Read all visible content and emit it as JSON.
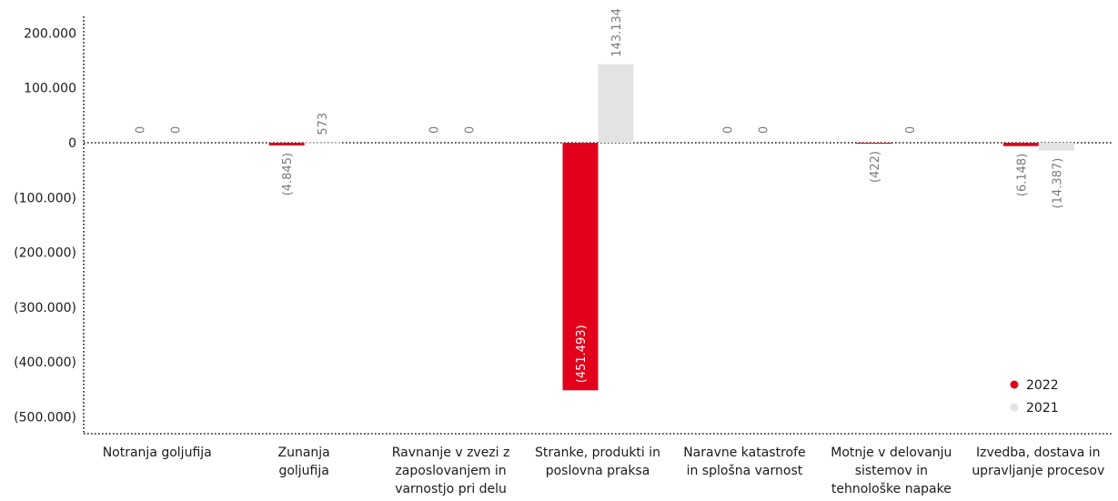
{
  "chart_data": {
    "type": "bar",
    "categories": [
      "Notranja goljufija",
      "Zunanja goljufija",
      "Ravnanje v zvezi z zaposlovanjem in varnostjo pri delu",
      "Stranke, produkti in poslovna praksa",
      "Naravne katastrofe in splošna varnost",
      "Motnje v delovanju sistemov in tehnološke napake",
      "Izvedba, dostava in upravljanje procesov"
    ],
    "category_lines": [
      [
        "Notranja goljufija"
      ],
      [
        "Zunanja",
        "goljufija"
      ],
      [
        "Ravnanje v zvezi z",
        "zaposlovanjem in",
        "varnostjo pri delu"
      ],
      [
        "Stranke, produkti in",
        "poslovna praksa"
      ],
      [
        "Naravne katastrofe",
        "in splošna varnost"
      ],
      [
        "Motnje v delovanju",
        "sistemov in",
        "tehnološke napake"
      ],
      [
        "Izvedba, dostava in",
        "upravljanje procesov"
      ]
    ],
    "series": [
      {
        "name": "2022",
        "color": "#e2001a",
        "values": [
          0,
          -4845,
          0,
          -451493,
          0,
          -422,
          -6148
        ],
        "labels": [
          "0",
          "(4.845)",
          "0",
          "(451.493)",
          "0",
          "(422)",
          "(6.148)"
        ]
      },
      {
        "name": "2021",
        "color": "#e3e3e3",
        "values": [
          0,
          573,
          0,
          143134,
          0,
          0,
          -14387
        ],
        "labels": [
          "0",
          "573",
          "0",
          "143.134",
          "0",
          "0",
          "(14.387)"
        ]
      }
    ],
    "y_ticks": [
      200000,
      100000,
      0,
      -100000,
      -200000,
      -300000,
      -400000,
      -500000
    ],
    "y_tick_labels": [
      "200.000",
      "100.000",
      "0",
      "(100.000)",
      "(200.000)",
      "(300.000)",
      "(400.000)",
      "(500.000)"
    ],
    "ylim": [
      -520000,
      230000
    ],
    "legend_position": "bottom-right",
    "grid": false
  }
}
